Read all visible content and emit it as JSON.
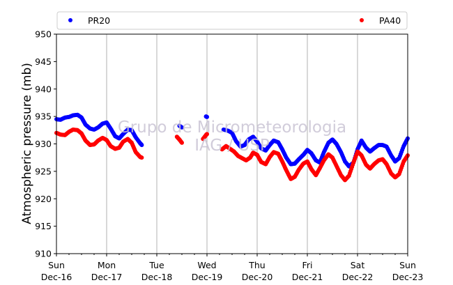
{
  "colors": {
    "pr20": "#0000ff",
    "pa40": "#ff0000",
    "grid": "#b0b0b0",
    "axis": "#000000",
    "watermark": "#c9c4d4"
  },
  "watermark": {
    "line1": "Grupo de Micrometeorologia",
    "line2": "IAG / USP"
  },
  "chart_data": {
    "type": "scatter",
    "ylabel": "Atmospheric pressure (mb)",
    "xlabel": "",
    "title": "",
    "ylim": [
      910,
      950
    ],
    "xlim": [
      0,
      7
    ],
    "yticks": [
      910,
      915,
      920,
      925,
      930,
      935,
      940,
      945,
      950
    ],
    "xticks": [
      {
        "day": "Sun",
        "date": "Dec-16"
      },
      {
        "day": "Mon",
        "date": "Dec-17"
      },
      {
        "day": "Tue",
        "date": "Dec-18"
      },
      {
        "day": "Wed",
        "date": "Dec-19"
      },
      {
        "day": "Thu",
        "date": "Dec-20"
      },
      {
        "day": "Fri",
        "date": "Dec-21"
      },
      {
        "day": "Sat",
        "date": "Dec-22"
      },
      {
        "day": "Sun",
        "date": "Dec-23"
      }
    ],
    "x_units": "days since Sun Dec-16 00:00",
    "grid": "vertical",
    "legend": {
      "placement": "top, above plot",
      "entries": [
        "PR20",
        "PA40"
      ]
    },
    "series": [
      {
        "name": "PR20",
        "color": "#0000ff",
        "points": [
          [
            0.0,
            934.5
          ],
          [
            0.08,
            934.4
          ],
          [
            0.17,
            934.8
          ],
          [
            0.25,
            934.9
          ],
          [
            0.33,
            935.2
          ],
          [
            0.42,
            935.3
          ],
          [
            0.5,
            934.8
          ],
          [
            0.58,
            933.5
          ],
          [
            0.67,
            932.8
          ],
          [
            0.75,
            932.6
          ],
          [
            0.83,
            933.0
          ],
          [
            0.92,
            933.7
          ],
          [
            1.0,
            933.9
          ],
          [
            1.08,
            932.8
          ],
          [
            1.17,
            931.4
          ],
          [
            1.25,
            931.0
          ],
          [
            1.33,
            931.8
          ],
          [
            1.42,
            932.6
          ],
          [
            1.5,
            932.5
          ],
          [
            1.58,
            931.2
          ],
          [
            1.67,
            930.1
          ],
          [
            1.7,
            929.8
          ],
          [
            2.45,
            933.3
          ],
          [
            2.5,
            933.0
          ],
          [
            2.98,
            935.0
          ],
          [
            3.0,
            934.9
          ],
          [
            3.33,
            932.6
          ],
          [
            3.42,
            932.4
          ],
          [
            3.5,
            932.0
          ],
          [
            3.58,
            930.5
          ],
          [
            3.67,
            929.5
          ],
          [
            3.75,
            929.8
          ],
          [
            3.83,
            930.8
          ],
          [
            3.92,
            931.3
          ],
          [
            4.0,
            930.4
          ],
          [
            4.08,
            929.2
          ],
          [
            4.17,
            928.8
          ],
          [
            4.25,
            929.8
          ],
          [
            4.33,
            930.6
          ],
          [
            4.42,
            930.3
          ],
          [
            4.5,
            929.0
          ],
          [
            4.58,
            927.5
          ],
          [
            4.67,
            926.3
          ],
          [
            4.75,
            926.4
          ],
          [
            4.83,
            927.2
          ],
          [
            4.92,
            928.0
          ],
          [
            5.0,
            928.9
          ],
          [
            5.08,
            928.3
          ],
          [
            5.17,
            927.0
          ],
          [
            5.25,
            926.6
          ],
          [
            5.33,
            928.5
          ],
          [
            5.42,
            930.2
          ],
          [
            5.5,
            930.8
          ],
          [
            5.58,
            930.0
          ],
          [
            5.67,
            928.5
          ],
          [
            5.75,
            926.8
          ],
          [
            5.83,
            925.9
          ],
          [
            5.92,
            926.6
          ],
          [
            6.0,
            929.0
          ],
          [
            6.08,
            930.6
          ],
          [
            6.17,
            929.3
          ],
          [
            6.25,
            928.6
          ],
          [
            6.33,
            929.2
          ],
          [
            6.42,
            929.8
          ],
          [
            6.5,
            929.8
          ],
          [
            6.58,
            929.5
          ],
          [
            6.67,
            927.9
          ],
          [
            6.75,
            926.8
          ],
          [
            6.83,
            927.4
          ],
          [
            6.92,
            929.6
          ],
          [
            7.0,
            931.0
          ]
        ]
      },
      {
        "name": "PA40",
        "color": "#ff0000",
        "points": [
          [
            0.0,
            932.0
          ],
          [
            0.08,
            931.7
          ],
          [
            0.17,
            931.6
          ],
          [
            0.25,
            932.2
          ],
          [
            0.33,
            932.6
          ],
          [
            0.42,
            932.5
          ],
          [
            0.5,
            931.9
          ],
          [
            0.58,
            930.6
          ],
          [
            0.67,
            929.8
          ],
          [
            0.75,
            929.9
          ],
          [
            0.83,
            930.6
          ],
          [
            0.92,
            931.1
          ],
          [
            1.0,
            930.7
          ],
          [
            1.08,
            929.6
          ],
          [
            1.17,
            929.1
          ],
          [
            1.25,
            929.3
          ],
          [
            1.33,
            930.4
          ],
          [
            1.42,
            930.9
          ],
          [
            1.5,
            930.2
          ],
          [
            1.58,
            928.5
          ],
          [
            1.67,
            927.6
          ],
          [
            1.7,
            927.5
          ],
          [
            2.4,
            931.3
          ],
          [
            2.45,
            930.8
          ],
          [
            2.5,
            930.2
          ],
          [
            2.92,
            930.9
          ],
          [
            2.98,
            931.6
          ],
          [
            3.0,
            931.8
          ],
          [
            3.3,
            929.0
          ],
          [
            3.38,
            929.6
          ],
          [
            3.46,
            929.1
          ],
          [
            3.54,
            928.6
          ],
          [
            3.62,
            927.8
          ],
          [
            3.7,
            927.4
          ],
          [
            3.78,
            927.0
          ],
          [
            3.86,
            927.5
          ],
          [
            3.92,
            928.4
          ],
          [
            4.0,
            928.0
          ],
          [
            4.08,
            926.7
          ],
          [
            4.17,
            926.3
          ],
          [
            4.25,
            927.6
          ],
          [
            4.33,
            928.5
          ],
          [
            4.42,
            928.2
          ],
          [
            4.5,
            926.8
          ],
          [
            4.58,
            925.2
          ],
          [
            4.67,
            923.6
          ],
          [
            4.75,
            924.0
          ],
          [
            4.83,
            925.3
          ],
          [
            4.92,
            926.4
          ],
          [
            5.0,
            926.8
          ],
          [
            5.08,
            925.4
          ],
          [
            5.17,
            924.3
          ],
          [
            5.25,
            925.6
          ],
          [
            5.33,
            927.0
          ],
          [
            5.42,
            928.1
          ],
          [
            5.5,
            927.5
          ],
          [
            5.58,
            926.0
          ],
          [
            5.67,
            924.3
          ],
          [
            5.75,
            923.4
          ],
          [
            5.83,
            924.2
          ],
          [
            5.92,
            926.6
          ],
          [
            6.0,
            928.6
          ],
          [
            6.08,
            927.9
          ],
          [
            6.17,
            926.2
          ],
          [
            6.25,
            925.5
          ],
          [
            6.33,
            926.3
          ],
          [
            6.42,
            927.0
          ],
          [
            6.5,
            927.2
          ],
          [
            6.58,
            926.3
          ],
          [
            6.67,
            924.6
          ],
          [
            6.75,
            923.9
          ],
          [
            6.83,
            924.5
          ],
          [
            6.92,
            926.8
          ],
          [
            7.0,
            927.9
          ]
        ]
      }
    ]
  }
}
